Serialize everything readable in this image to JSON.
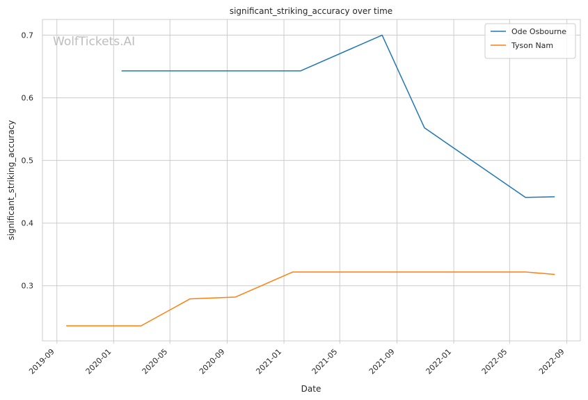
{
  "chart_data": {
    "type": "line",
    "title": "significant_striking_accuracy over time",
    "xlabel": "Date",
    "ylabel": "significant_striking_accuracy",
    "watermark": "WolfTickets.AI",
    "x_ticks": [
      "2019-09",
      "2020-01",
      "2020-05",
      "2020-09",
      "2021-01",
      "2021-05",
      "2021-09",
      "2022-01",
      "2022-05",
      "2022-09"
    ],
    "y_ticks": [
      "0.3",
      "0.4",
      "0.5",
      "0.6",
      "0.7"
    ],
    "xlim": [
      "2019-08-01",
      "2022-09-30"
    ],
    "ylim": [
      0.212,
      0.725
    ],
    "grid": true,
    "legend_position": "top-right",
    "series": [
      {
        "name": "Ode Osbourne",
        "color": "#1f77b4",
        "points": [
          {
            "x": "2020-01-18",
            "y": 0.643
          },
          {
            "x": "2021-02-06",
            "y": 0.643
          },
          {
            "x": "2021-07-31",
            "y": 0.7
          },
          {
            "x": "2021-10-30",
            "y": 0.552
          },
          {
            "x": "2022-06-04",
            "y": 0.441
          },
          {
            "x": "2022-08-06",
            "y": 0.442
          }
        ]
      },
      {
        "name": "Tyson Nam",
        "color": "#ff7f0e",
        "points": [
          {
            "x": "2019-09-21",
            "y": 0.236
          },
          {
            "x": "2020-02-29",
            "y": 0.236
          },
          {
            "x": "2020-06-13",
            "y": 0.279
          },
          {
            "x": "2020-09-19",
            "y": 0.282
          },
          {
            "x": "2021-01-20",
            "y": 0.322
          },
          {
            "x": "2022-06-04",
            "y": 0.322
          },
          {
            "x": "2022-08-06",
            "y": 0.318
          }
        ]
      }
    ]
  }
}
